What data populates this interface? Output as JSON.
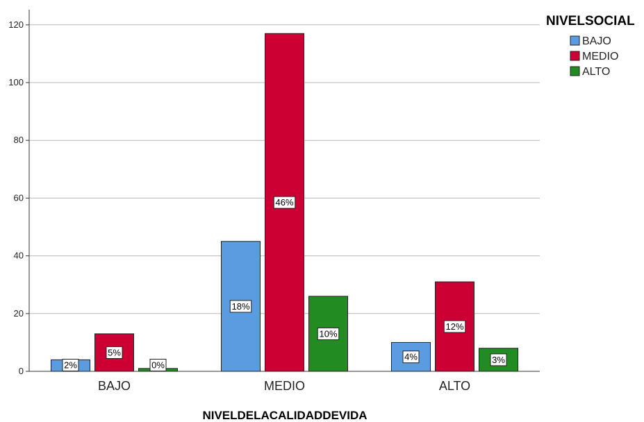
{
  "chart_data": {
    "type": "bar",
    "categories": [
      "BAJO",
      "MEDIO",
      "ALTO"
    ],
    "xlabel": "NIVELDELACALIDADDEVIDA",
    "ylabel": "",
    "ylim": [
      0,
      125
    ],
    "yticks": [
      0,
      20,
      40,
      60,
      80,
      100,
      120
    ],
    "grid": true,
    "legend": {
      "title": "NIVELSOCIAL",
      "position": "top-right"
    },
    "series": [
      {
        "name": "BAJO",
        "color": "#5b9bdf",
        "values": [
          4,
          45,
          10
        ],
        "labels": [
          "2%",
          "18%",
          "4%"
        ]
      },
      {
        "name": "MEDIO",
        "color": "#cc0033",
        "values": [
          13,
          117,
          31
        ],
        "labels": [
          "5%",
          "46%",
          "12%"
        ]
      },
      {
        "name": "ALTO",
        "color": "#228b22",
        "values": [
          1,
          26,
          8
        ],
        "labels": [
          "0%",
          "10%",
          "3%"
        ]
      }
    ]
  }
}
